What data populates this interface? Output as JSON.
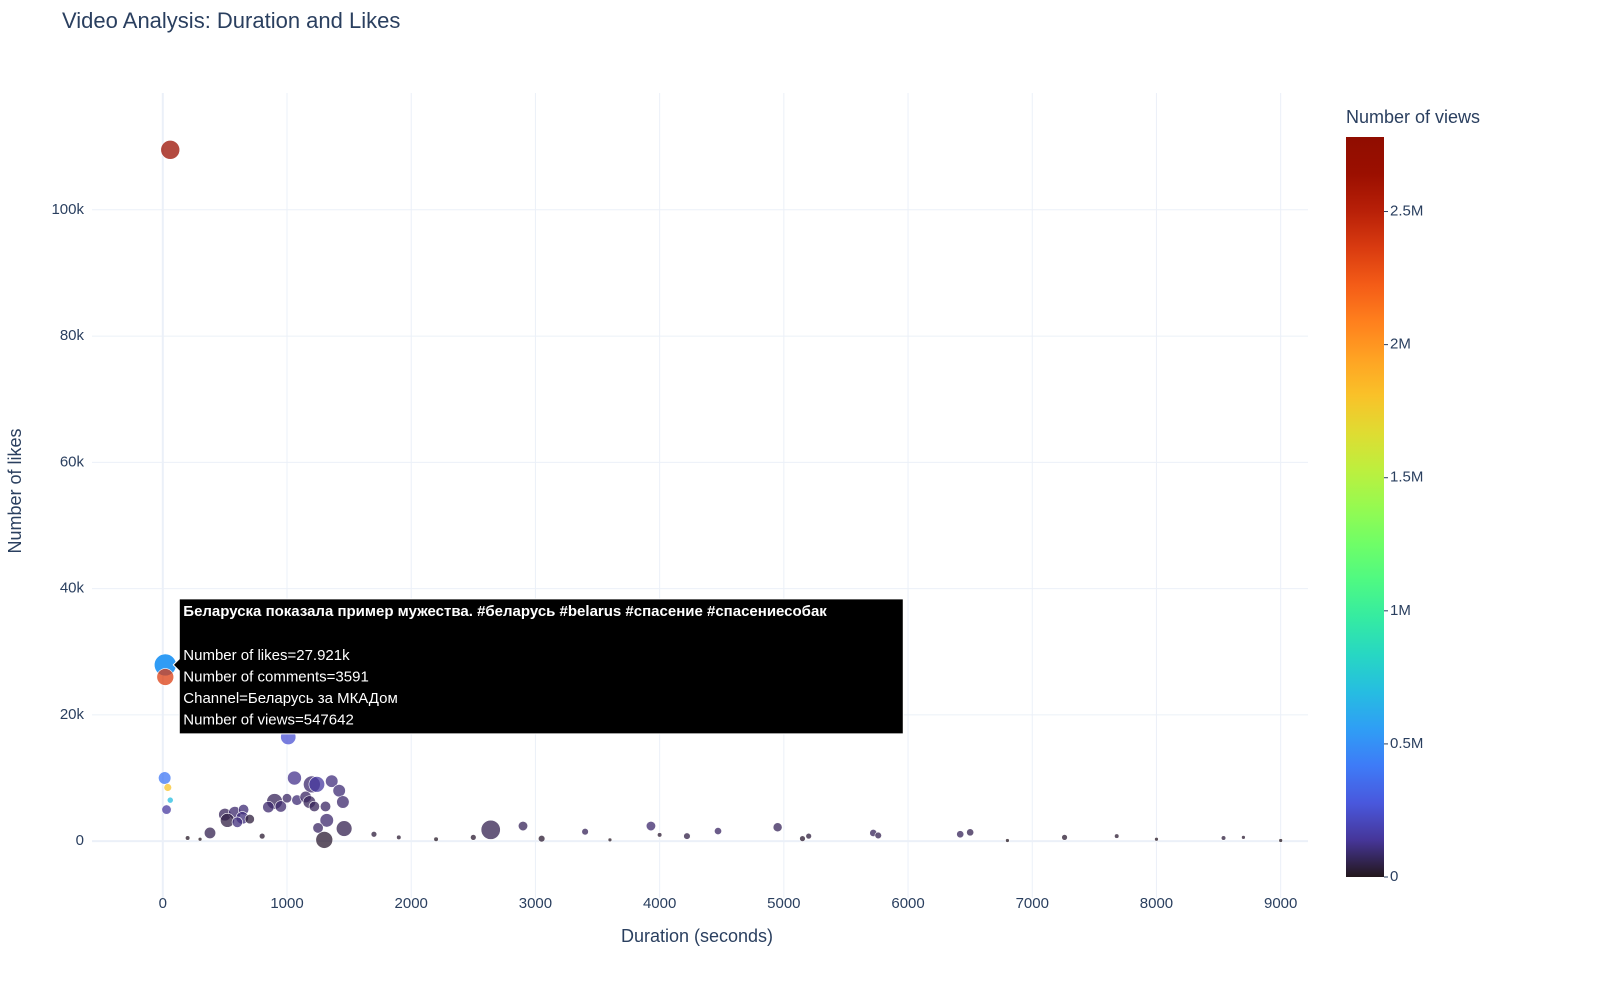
{
  "chart_data": {
    "type": "scatter",
    "title": "Video Analysis: Duration and Likes",
    "x_label": "Duration (seconds)",
    "y_label": "Number of likes",
    "xlim": [
      -570,
      9220
    ],
    "ylim": [
      -9000,
      118500
    ],
    "xticks": [
      0,
      1000,
      2000,
      3000,
      4000,
      5000,
      6000,
      7000,
      8000,
      9000
    ],
    "yticks": [
      0,
      {
        "value": 20000,
        "label": "20k"
      },
      {
        "value": 40000,
        "label": "40k"
      },
      {
        "value": 60000,
        "label": "60k"
      },
      {
        "value": 80000,
        "label": "80k"
      },
      {
        "value": 100000,
        "label": "100k"
      }
    ],
    "grid": true,
    "x": [
      60,
      20,
      20,
      1010,
      15,
      40,
      60,
      30,
      1060,
      1200,
      1240,
      1360,
      1420,
      1450,
      900,
      950,
      1000,
      1080,
      1150,
      1180,
      1220,
      1310,
      850,
      500,
      580,
      650,
      640,
      700,
      520,
      600,
      380,
      1320,
      1460,
      1250,
      1300,
      2640,
      2900,
      3930,
      3400,
      4470,
      4950,
      5720,
      5760,
      6420,
      6500,
      7260,
      4220,
      3050,
      5150,
      5200,
      7680,
      8540,
      200,
      300,
      800,
      1700,
      1900,
      2200,
      2500,
      3600,
      4000,
      6800,
      8000,
      8700,
      9000
    ],
    "values": [
      109500,
      27921,
      26000,
      16500,
      10000,
      8500,
      6500,
      5000,
      10000,
      9000,
      9000,
      9500,
      8000,
      6200,
      6300,
      5500,
      6800,
      6500,
      7000,
      6200,
      5500,
      5500,
      5400,
      4200,
      4500,
      5000,
      3700,
      3500,
      3300,
      3000,
      1300,
      3300,
      2000,
      2100,
      200,
      1800,
      2400,
      2400,
      1500,
      1600,
      2200,
      1300,
      900,
      1100,
      1400,
      600,
      800,
      400,
      400,
      800,
      800,
      500,
      500,
      300,
      800,
      1100,
      600,
      300,
      600,
      200,
      1000,
      100,
      300,
      600,
      100
    ],
    "comments": [
      2600,
      3591,
      2000,
      1600,
      1000,
      300,
      150,
      500,
      1300,
      2000,
      1700,
      1000,
      1000,
      1000,
      1700,
      800,
      500,
      650,
      800,
      1000,
      650,
      650,
      800,
      1000,
      1000,
      650,
      1000,
      500,
      1300,
      650,
      800,
      1200,
      1700,
      650,
      2000,
      2700,
      500,
      500,
      200,
      250,
      450,
      250,
      200,
      250,
      250,
      130,
      200,
      200,
      130,
      130,
      60,
      60,
      60,
      30,
      130,
      130,
      60,
      60,
      130,
      30,
      60,
      30,
      30,
      30,
      30
    ],
    "views": [
      2650000,
      547642,
      2350000,
      250000,
      400000,
      1800000,
      700000,
      150000,
      120000,
      80000,
      150000,
      100000,
      90000,
      80000,
      60000,
      80000,
      70000,
      90000,
      70000,
      60000,
      60000,
      70000,
      80000,
      60000,
      80000,
      90000,
      100000,
      30000,
      40000,
      100000,
      50000,
      80000,
      50000,
      70000,
      20000,
      50000,
      60000,
      80000,
      60000,
      70000,
      60000,
      60000,
      50000,
      60000,
      50000,
      20000,
      40000,
      20000,
      20000,
      30000,
      20000,
      30000,
      10000,
      5000,
      20000,
      30000,
      20000,
      10000,
      20000,
      10000,
      20000,
      5000,
      10000,
      20000,
      5000
    ],
    "colorbar": {
      "title": "Number of views",
      "colorscale": "turbo",
      "lim": [
        0,
        2780000
      ],
      "ticks": [
        0,
        {
          "value": 500000,
          "label": "0.5M"
        },
        {
          "value": 1000000,
          "label": "1M"
        },
        {
          "value": 1500000,
          "label": "1.5M"
        },
        {
          "value": 2000000,
          "label": "2M"
        },
        {
          "value": 2500000,
          "label": "2.5M"
        }
      ]
    },
    "hover": {
      "index": 1,
      "title": "Беларуска показала пример мужества. #беларусь #belarus #спасение #спасениесобак",
      "lines": [
        "Number of likes=27.921k",
        "Number of comments=3591",
        "Channel=Беларусь за МКАДом",
        "Number of views=547642"
      ]
    }
  }
}
